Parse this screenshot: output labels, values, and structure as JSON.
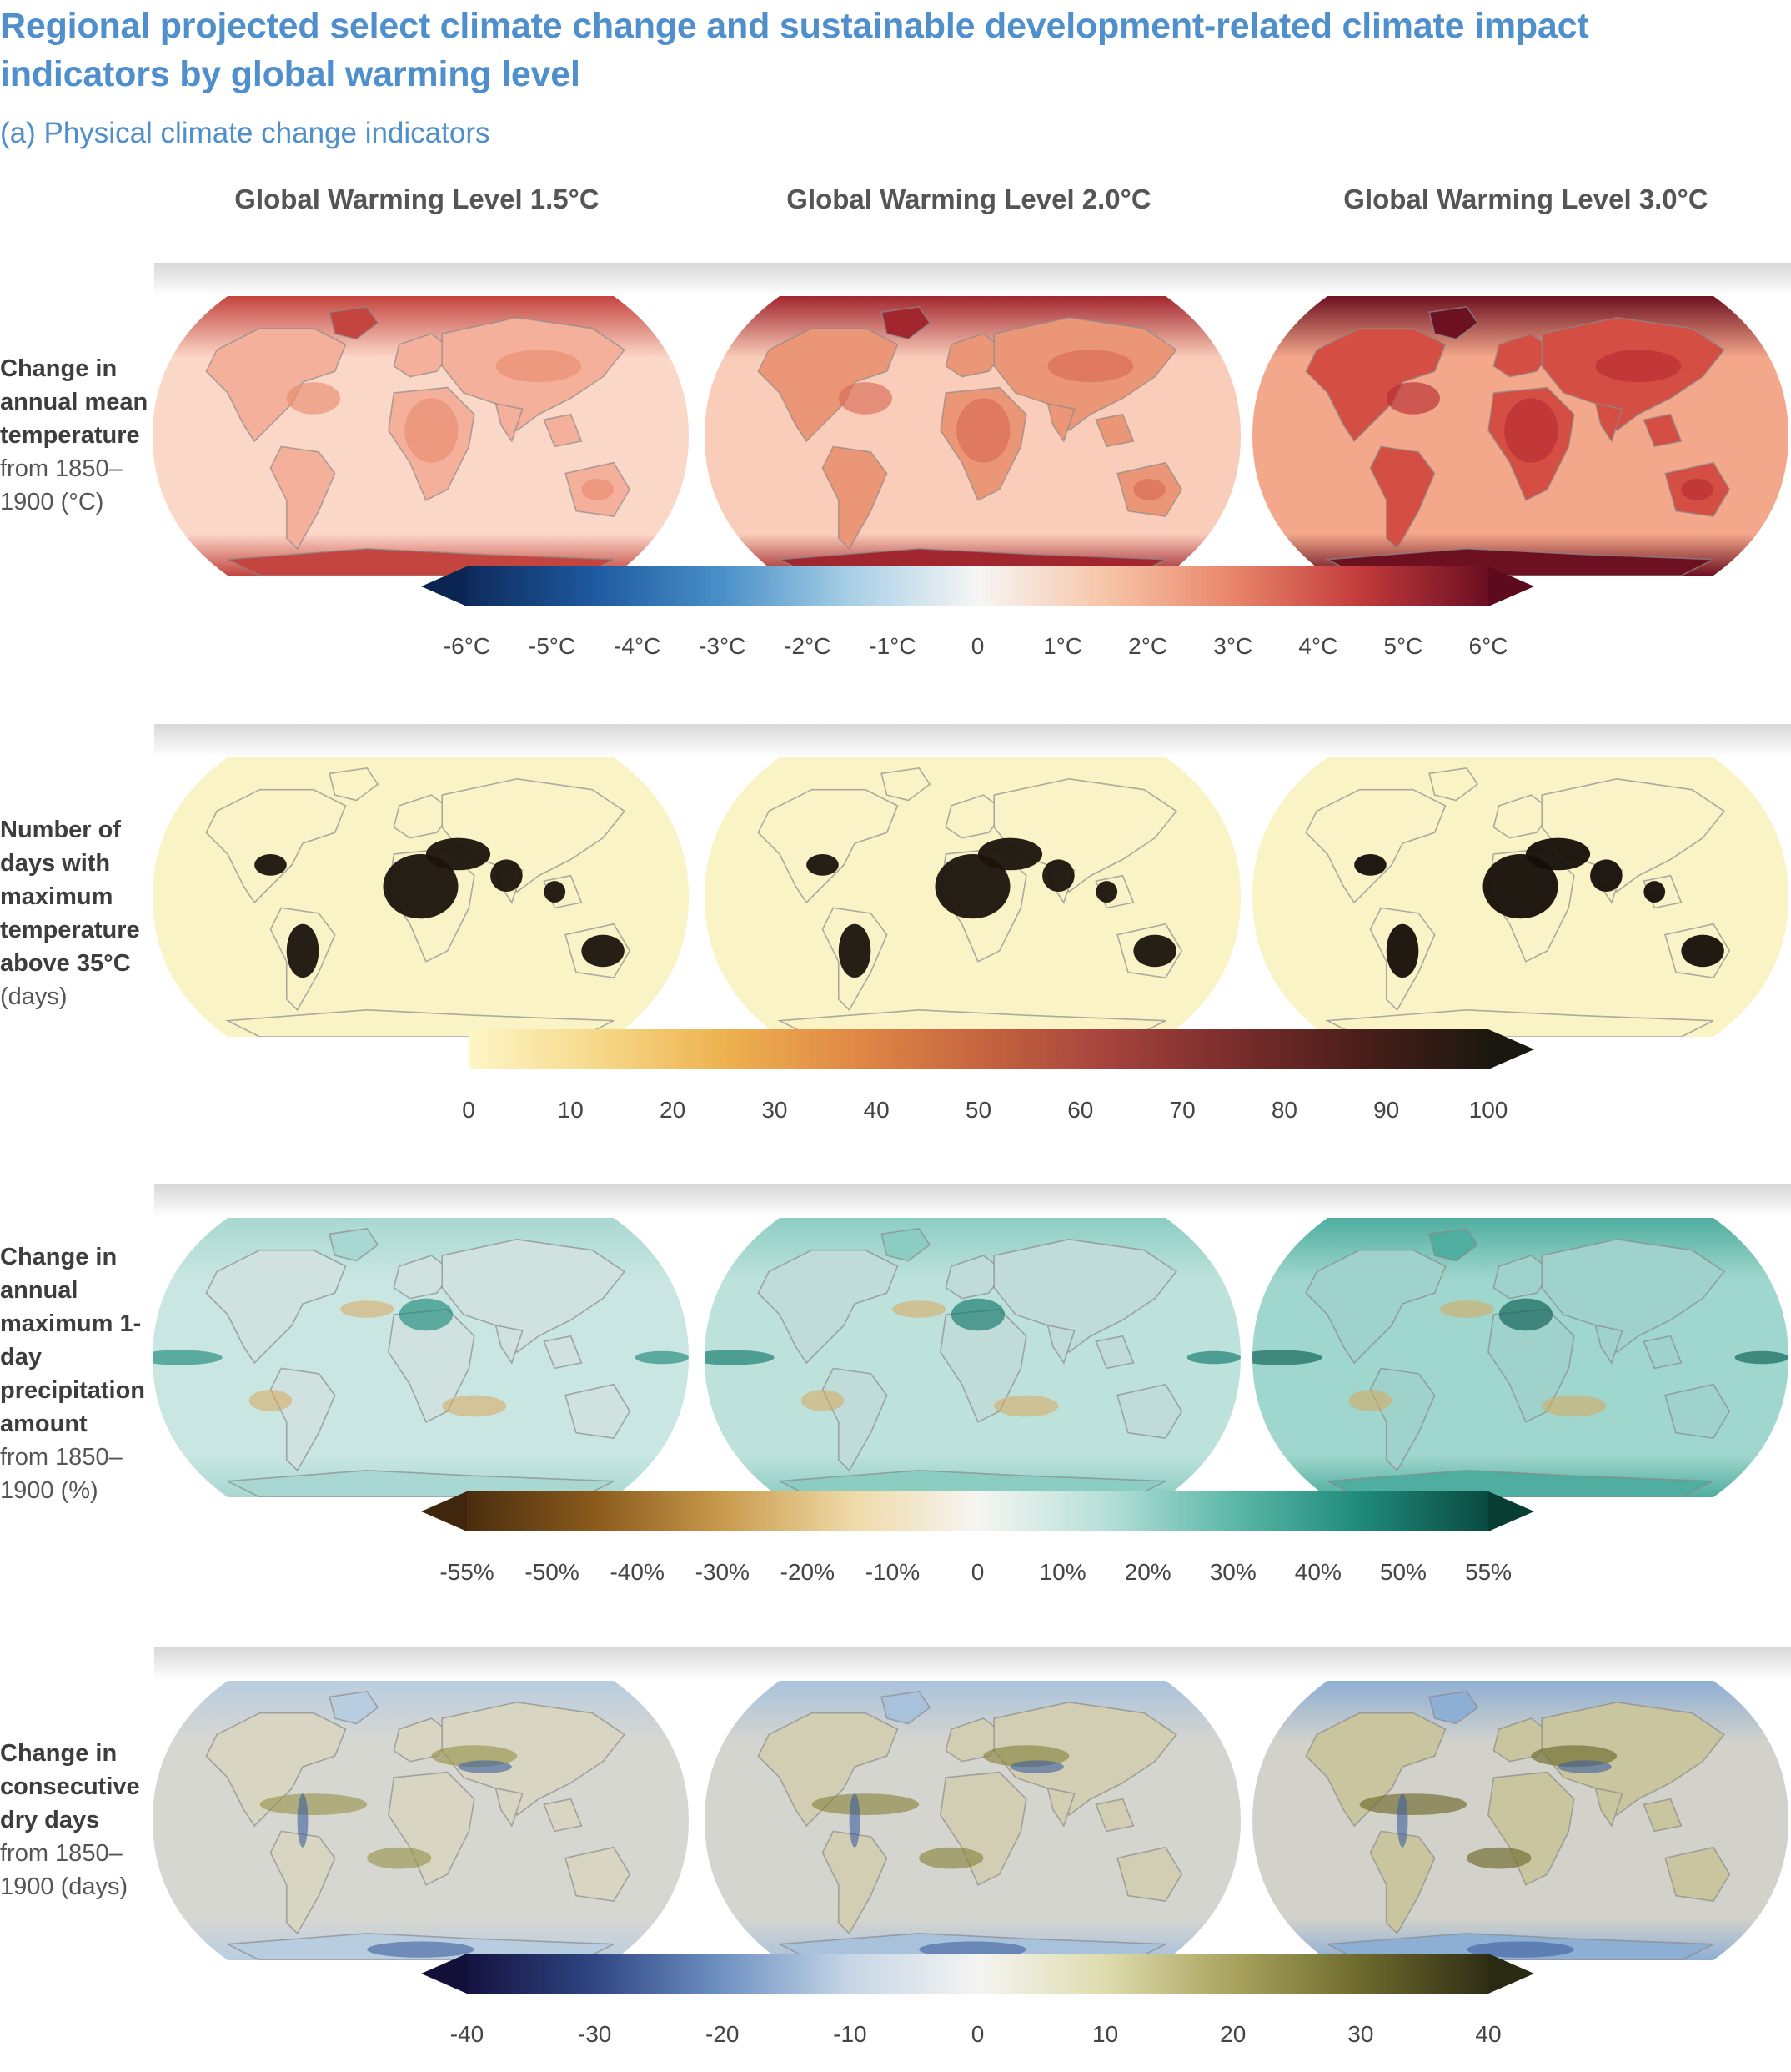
{
  "header": {
    "title": "Regional projected select climate change and sustainable development-related climate impact indicators by global warming level",
    "subtitle": "(a) Physical climate change indicators"
  },
  "columns": [
    "Global Warming Level 1.5°C",
    "Global Warming Level 2.0°C",
    "Global Warming Level 3.0°C"
  ],
  "rows": [
    {
      "label_bold": "Change in annual mean temperature",
      "label_normal": "from 1850–1900 (°C)",
      "colorbar": {
        "ticks": [
          "-6°C",
          "-5°C",
          "-4°C",
          "-3°C",
          "-2°C",
          "-1°C",
          "0",
          "1°C",
          "2°C",
          "3°C",
          "4°C",
          "5°C",
          "6°C"
        ],
        "colors": [
          "#0e2a5c",
          "#1e5aa0",
          "#4a90c8",
          "#a7cfe6",
          "#f6f6f4",
          "#f7c5a8",
          "#e9856a",
          "#c23a3b",
          "#6b0f22"
        ],
        "left_arrow": "#0b2552",
        "right_arrow": "#5d0a1e"
      },
      "maps": [
        {
          "land": "#f4b09a",
          "ocean": "#fbd7c8",
          "arctic": "#c4453f",
          "hot": "#e98d70"
        },
        {
          "land": "#eb9677",
          "ocean": "#f9cdb9",
          "arctic": "#a2262e",
          "hot": "#d96b56"
        },
        {
          "land": "#d44e43",
          "ocean": "#f3a88b",
          "arctic": "#6d1020",
          "hot": "#b92c33"
        }
      ]
    },
    {
      "label_bold": "Number of days with maximum temperature above 35°C",
      "label_normal": "(days)",
      "colorbar": {
        "ticks": [
          "0",
          "10",
          "20",
          "30",
          "40",
          "50",
          "60",
          "70",
          "80",
          "90",
          "100"
        ],
        "colors": [
          "#fdf6c6",
          "#f6d98a",
          "#eeb24f",
          "#e08a45",
          "#c6653f",
          "#a6433d",
          "#7a2d2c",
          "#4a1e1a",
          "#1c1810"
        ],
        "left_arrow": "",
        "right_arrow": "#1a1610"
      },
      "maps": [
        {
          "land": "#fbf3c8",
          "ocean": "#faf3c6",
          "arctic": "#faf3c6",
          "hot": "#1a130c"
        },
        {
          "land": "#fbf3c8",
          "ocean": "#faf3c6",
          "arctic": "#faf3c6",
          "hot": "#1a130c"
        },
        {
          "land": "#fbf3c8",
          "ocean": "#faf3c6",
          "arctic": "#faf3c6",
          "hot": "#140e08"
        }
      ]
    },
    {
      "label_bold": "Change in annual maximum 1-day precipitation amount",
      "label_normal": "from 1850–1900 (%)",
      "colorbar": {
        "ticks": [
          "-55%",
          "-50%",
          "-40%",
          "-30%",
          "-20%",
          "-10%",
          "0",
          "10%",
          "20%",
          "30%",
          "40%",
          "50%",
          "55%"
        ],
        "colors": [
          "#4a2d0e",
          "#8a5a1c",
          "#c89a4c",
          "#efd9a6",
          "#f5f5f2",
          "#b6e0d8",
          "#5cb8a8",
          "#1f8a7a",
          "#0a4a40"
        ],
        "left_arrow": "#3f260c",
        "right_arrow": "#083d34"
      },
      "maps": [
        {
          "land": "#cfe2df",
          "ocean": "#c9e6e2",
          "arctic": "#a8d8d1",
          "hot": "#1e8a7c"
        },
        {
          "land": "#bfdcd8",
          "ocean": "#bde2dc",
          "arctic": "#8ccdc2",
          "hot": "#13786b"
        },
        {
          "land": "#9fd2ca",
          "ocean": "#9fd6cd",
          "arctic": "#4fae9f",
          "hot": "#0b5e53"
        }
      ]
    },
    {
      "label_bold": "Change in consecutive dry days",
      "label_normal": "from 1850–1900 (days)",
      "colorbar": {
        "ticks": [
          "-40",
          "-30",
          "-20",
          "-10",
          "0",
          "10",
          "20",
          "30",
          "40"
        ],
        "colors": [
          "#14123f",
          "#2f4683",
          "#6f92c2",
          "#c6d6e6",
          "#f4f4f2",
          "#dedcae",
          "#a9a35e",
          "#6d6a2d",
          "#2f2e14"
        ],
        "left_arrow": "#121038",
        "right_arrow": "#2a2912"
      },
      "maps": [
        {
          "land": "#d8d6c2",
          "ocean": "#d7d7d2",
          "arctic": "#b9cde0",
          "hot": "#9a9550"
        },
        {
          "land": "#d1ceb3",
          "ocean": "#d5d5cf",
          "arctic": "#a9c2dc",
          "hot": "#8a8540"
        },
        {
          "land": "#c9c59f",
          "ocean": "#d2d2cb",
          "arctic": "#8eafd4",
          "hot": "#6f6a2c"
        }
      ]
    }
  ]
}
